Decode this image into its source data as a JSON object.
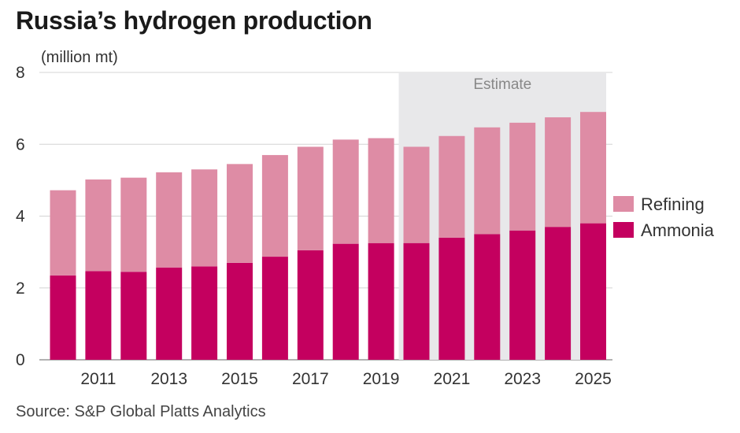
{
  "title": "Russia’s hydrogen production",
  "source": "Source: S&P Global Platts Analytics",
  "colors": {
    "refining": "#de8ca5",
    "ammonia": "#c4005f",
    "estimate_band": "#e8e8ea",
    "grid": "#d4d4d4"
  },
  "chart_data": {
    "type": "bar",
    "stacked": true,
    "ylabel": "(million mt)",
    "ylim": [
      0,
      8
    ],
    "yticks": [
      0,
      2,
      4,
      6,
      8
    ],
    "categories": [
      2010,
      2011,
      2012,
      2013,
      2014,
      2015,
      2016,
      2017,
      2018,
      2019,
      2020,
      2021,
      2022,
      2023,
      2024,
      2025
    ],
    "xtick_labels": [
      "2011",
      "2013",
      "2015",
      "2017",
      "2019",
      "2021",
      "2023",
      "2025"
    ],
    "series": [
      {
        "name": "Ammonia",
        "values": [
          2.35,
          2.47,
          2.45,
          2.57,
          2.6,
          2.7,
          2.87,
          3.05,
          3.23,
          3.25,
          3.25,
          3.4,
          3.5,
          3.6,
          3.7,
          3.8
        ]
      },
      {
        "name": "Refining",
        "values": [
          2.37,
          2.55,
          2.62,
          2.65,
          2.7,
          2.75,
          2.83,
          2.88,
          2.9,
          2.92,
          2.68,
          2.83,
          2.97,
          3.0,
          3.05,
          3.1
        ]
      }
    ],
    "estimate_label": "Estimate",
    "estimate_from": 2020,
    "legend": [
      "Refining",
      "Ammonia"
    ],
    "legend_position": "right",
    "grid": true
  }
}
